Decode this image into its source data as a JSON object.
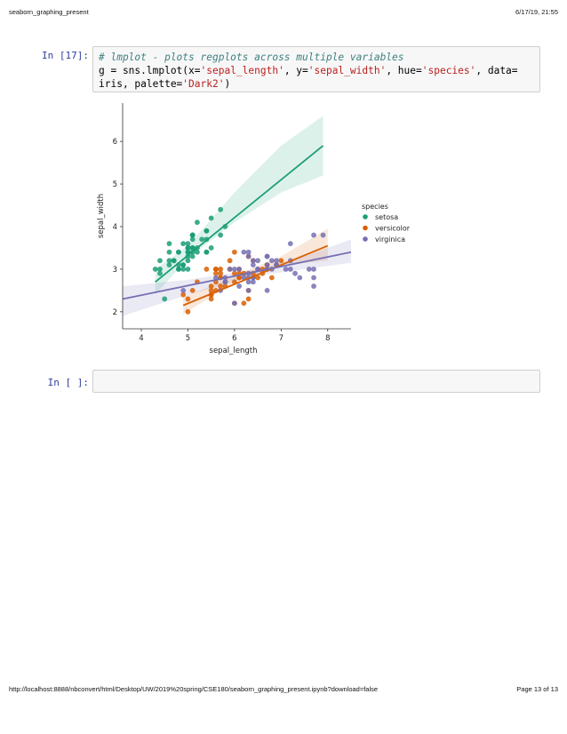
{
  "page": {
    "header_left": "seaborn_graphing_present",
    "header_right": "6/17/19, 21:55",
    "footer_left": "http://localhost:8888/nbconvert/html/Desktop/UW/2019%20spring/CSE180/seaborn_graphing_present.ipynb?download=false",
    "footer_right": "Page 13 of 13"
  },
  "cells": {
    "cell17": {
      "prompt": "In [17]:",
      "comment": "# lmplot - plots regplots across multiple variables",
      "code_g": "g = sns.lmplot(x=",
      "s_x": "'sepal_length'",
      "code_y": ", y=",
      "s_y": "'sepal_width'",
      "code_hue": ", hue=",
      "s_hue": "'species'",
      "code_data": ", data=",
      "code_iris": "iris, palette=",
      "s_pal": "'Dark2'",
      "code_end": ")"
    },
    "cell_empty": {
      "prompt": "In [ ]:",
      "code": ""
    }
  },
  "colors": {
    "setosa": "#1b9e77",
    "versicolor": "#d95f02",
    "virginica": "#7570b3",
    "prompt": "#303f9f"
  },
  "chart_data": {
    "type": "scatter",
    "xlabel": "sepal_length",
    "ylabel": "sepal_width",
    "xlim": [
      3.6,
      8.5
    ],
    "ylim": [
      1.6,
      6.9
    ],
    "xticks": [
      4,
      5,
      6,
      7,
      8
    ],
    "yticks": [
      2,
      3,
      4,
      5,
      6
    ],
    "legend_title": "species",
    "legend_position": "right",
    "series": [
      {
        "name": "setosa",
        "color": "#1b9e77",
        "fit": {
          "x": [
            4.3,
            7.9
          ],
          "y": [
            2.7,
            5.9
          ]
        },
        "ci_upper": [
          [
            4.3,
            3.0
          ],
          [
            5.0,
            3.55
          ],
          [
            6.0,
            4.8
          ],
          [
            7.0,
            5.9
          ],
          [
            7.9,
            6.6
          ]
        ],
        "ci_lower": [
          [
            4.3,
            2.4
          ],
          [
            5.0,
            3.25
          ],
          [
            6.0,
            4.1
          ],
          [
            7.0,
            4.8
          ],
          [
            7.9,
            5.2
          ]
        ],
        "points": [
          [
            5.1,
            3.5
          ],
          [
            4.9,
            3.0
          ],
          [
            4.7,
            3.2
          ],
          [
            4.6,
            3.1
          ],
          [
            5.0,
            3.6
          ],
          [
            5.4,
            3.9
          ],
          [
            4.6,
            3.4
          ],
          [
            5.0,
            3.4
          ],
          [
            4.4,
            2.9
          ],
          [
            4.9,
            3.1
          ],
          [
            5.4,
            3.7
          ],
          [
            4.8,
            3.4
          ],
          [
            4.8,
            3.0
          ],
          [
            4.3,
            3.0
          ],
          [
            5.8,
            4.0
          ],
          [
            5.7,
            4.4
          ],
          [
            5.4,
            3.9
          ],
          [
            5.1,
            3.5
          ],
          [
            5.7,
            3.8
          ],
          [
            5.1,
            3.8
          ],
          [
            5.4,
            3.4
          ],
          [
            5.1,
            3.7
          ],
          [
            4.6,
            3.6
          ],
          [
            5.1,
            3.3
          ],
          [
            4.8,
            3.4
          ],
          [
            5.0,
            3.0
          ],
          [
            5.0,
            3.4
          ],
          [
            5.2,
            3.5
          ],
          [
            5.2,
            3.4
          ],
          [
            4.7,
            3.2
          ],
          [
            4.8,
            3.1
          ],
          [
            5.4,
            3.4
          ],
          [
            5.2,
            4.1
          ],
          [
            5.5,
            4.2
          ],
          [
            4.9,
            3.1
          ],
          [
            5.0,
            3.2
          ],
          [
            5.5,
            3.5
          ],
          [
            4.9,
            3.6
          ],
          [
            4.4,
            3.0
          ],
          [
            5.1,
            3.4
          ],
          [
            5.0,
            3.5
          ],
          [
            4.5,
            2.3
          ],
          [
            4.4,
            3.2
          ],
          [
            5.0,
            3.5
          ],
          [
            5.1,
            3.8
          ],
          [
            4.8,
            3.0
          ],
          [
            5.1,
            3.8
          ],
          [
            4.6,
            3.2
          ],
          [
            5.3,
            3.7
          ],
          [
            5.0,
            3.3
          ]
        ]
      },
      {
        "name": "versicolor",
        "color": "#d95f02",
        "fit": {
          "x": [
            4.9,
            8.0
          ],
          "y": [
            2.15,
            3.55
          ]
        },
        "ci_upper": [
          [
            4.9,
            2.35
          ],
          [
            5.5,
            2.6
          ],
          [
            6.0,
            2.85
          ],
          [
            7.0,
            3.3
          ],
          [
            8.0,
            3.95
          ]
        ],
        "ci_lower": [
          [
            4.9,
            1.95
          ],
          [
            5.5,
            2.35
          ],
          [
            6.0,
            2.7
          ],
          [
            7.0,
            3.1
          ],
          [
            8.0,
            3.2
          ]
        ],
        "points": [
          [
            7.0,
            3.2
          ],
          [
            6.4,
            3.2
          ],
          [
            6.9,
            3.1
          ],
          [
            5.5,
            2.3
          ],
          [
            6.5,
            2.8
          ],
          [
            5.7,
            2.8
          ],
          [
            6.3,
            3.3
          ],
          [
            4.9,
            2.4
          ],
          [
            6.6,
            2.9
          ],
          [
            5.2,
            2.7
          ],
          [
            5.0,
            2.0
          ],
          [
            5.9,
            3.0
          ],
          [
            6.0,
            2.2
          ],
          [
            6.1,
            2.9
          ],
          [
            5.6,
            2.9
          ],
          [
            6.7,
            3.1
          ],
          [
            5.6,
            3.0
          ],
          [
            5.8,
            2.7
          ],
          [
            6.2,
            2.2
          ],
          [
            5.6,
            2.5
          ],
          [
            5.9,
            3.2
          ],
          [
            6.1,
            2.8
          ],
          [
            6.3,
            2.5
          ],
          [
            6.1,
            2.8
          ],
          [
            6.4,
            2.9
          ],
          [
            6.6,
            3.0
          ],
          [
            6.8,
            2.8
          ],
          [
            6.7,
            3.0
          ],
          [
            6.0,
            2.9
          ],
          [
            5.7,
            2.6
          ],
          [
            5.5,
            2.4
          ],
          [
            5.5,
            2.4
          ],
          [
            5.8,
            2.7
          ],
          [
            6.0,
            2.7
          ],
          [
            5.4,
            3.0
          ],
          [
            6.0,
            3.4
          ],
          [
            6.7,
            3.1
          ],
          [
            6.3,
            2.3
          ],
          [
            5.6,
            3.0
          ],
          [
            5.5,
            2.5
          ],
          [
            5.5,
            2.6
          ],
          [
            6.1,
            3.0
          ],
          [
            5.8,
            2.6
          ],
          [
            5.0,
            2.3
          ],
          [
            5.6,
            2.7
          ],
          [
            5.7,
            3.0
          ],
          [
            5.7,
            2.9
          ],
          [
            6.2,
            2.9
          ],
          [
            5.1,
            2.5
          ],
          [
            5.7,
            2.8
          ]
        ]
      },
      {
        "name": "virginica",
        "color": "#7570b3",
        "fit": {
          "x": [
            3.6,
            8.5
          ],
          "y": [
            2.3,
            3.4
          ]
        },
        "ci_upper": [
          [
            3.6,
            2.6
          ],
          [
            5.0,
            2.75
          ],
          [
            6.5,
            3.0
          ],
          [
            7.5,
            3.3
          ],
          [
            8.5,
            3.7
          ]
        ],
        "ci_lower": [
          [
            3.6,
            1.9
          ],
          [
            5.0,
            2.4
          ],
          [
            6.5,
            2.85
          ],
          [
            7.5,
            3.0
          ],
          [
            8.5,
            3.15
          ]
        ],
        "points": [
          [
            6.3,
            3.3
          ],
          [
            5.8,
            2.7
          ],
          [
            7.1,
            3.0
          ],
          [
            6.3,
            2.9
          ],
          [
            6.5,
            3.0
          ],
          [
            7.6,
            3.0
          ],
          [
            4.9,
            2.5
          ],
          [
            7.3,
            2.9
          ],
          [
            6.7,
            2.5
          ],
          [
            7.2,
            3.6
          ],
          [
            6.5,
            3.2
          ],
          [
            6.4,
            2.7
          ],
          [
            6.8,
            3.0
          ],
          [
            5.7,
            2.5
          ],
          [
            5.8,
            2.8
          ],
          [
            6.4,
            3.2
          ],
          [
            6.5,
            3.0
          ],
          [
            7.7,
            3.8
          ],
          [
            7.7,
            2.6
          ],
          [
            6.0,
            2.2
          ],
          [
            6.9,
            3.2
          ],
          [
            5.6,
            2.8
          ],
          [
            7.7,
            2.8
          ],
          [
            6.3,
            2.7
          ],
          [
            6.7,
            3.3
          ],
          [
            7.2,
            3.2
          ],
          [
            6.2,
            2.8
          ],
          [
            6.1,
            3.0
          ],
          [
            6.4,
            2.8
          ],
          [
            7.2,
            3.0
          ],
          [
            7.4,
            2.8
          ],
          [
            7.9,
            3.8
          ],
          [
            6.4,
            2.8
          ],
          [
            6.3,
            2.8
          ],
          [
            6.1,
            2.6
          ],
          [
            7.7,
            3.0
          ],
          [
            6.3,
            3.4
          ],
          [
            6.4,
            3.1
          ],
          [
            6.0,
            3.0
          ],
          [
            6.9,
            3.1
          ],
          [
            6.7,
            3.1
          ],
          [
            6.9,
            3.1
          ],
          [
            5.8,
            2.7
          ],
          [
            6.8,
            3.2
          ],
          [
            6.7,
            3.3
          ],
          [
            6.7,
            3.0
          ],
          [
            6.3,
            2.5
          ],
          [
            6.5,
            3.0
          ],
          [
            6.2,
            3.4
          ],
          [
            5.9,
            3.0
          ]
        ]
      }
    ]
  }
}
